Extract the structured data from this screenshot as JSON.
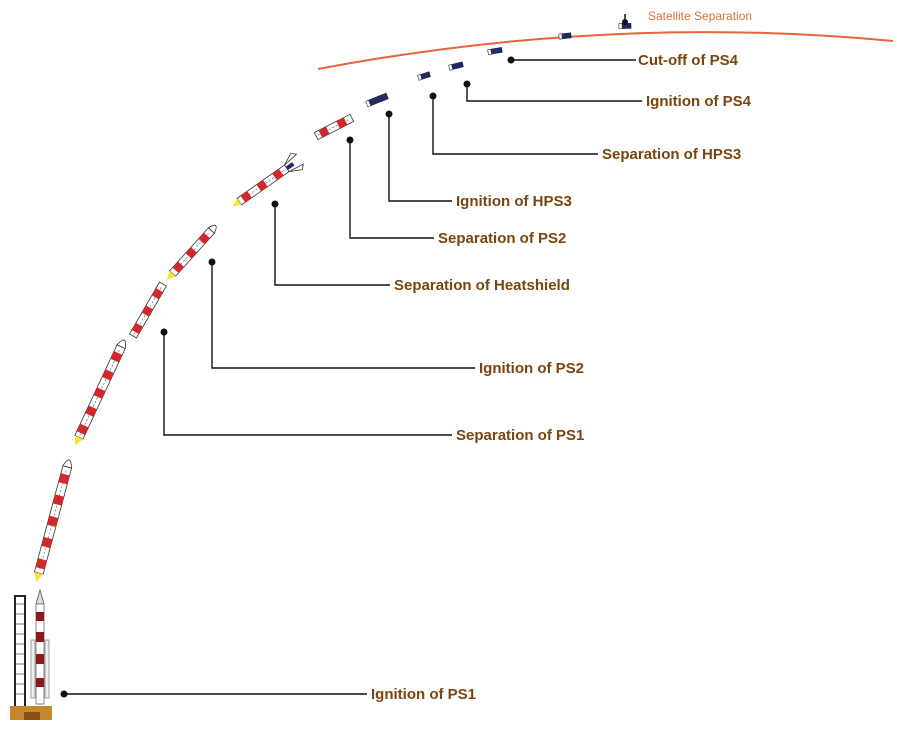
{
  "diagram": {
    "orbit_label": "Satellite Separation",
    "events": [
      {
        "id": "cutoff-ps4",
        "label": "Cut-off of PS4"
      },
      {
        "id": "ignition-ps4",
        "label": "Ignition of PS4"
      },
      {
        "id": "separation-hps3",
        "label": "Separation of HPS3"
      },
      {
        "id": "ignition-hps3",
        "label": "Ignition of HPS3"
      },
      {
        "id": "separation-ps2",
        "label": "Separation of PS2"
      },
      {
        "id": "separation-heatshield",
        "label": "Separation of Heatshield"
      },
      {
        "id": "ignition-ps2",
        "label": "Ignition of PS2"
      },
      {
        "id": "separation-ps1",
        "label": "Separation of PS1"
      },
      {
        "id": "ignition-ps1",
        "label": "Ignition of PS1"
      }
    ],
    "colors": {
      "label": "#7a4510",
      "orbit": "#e8643f",
      "rocket_red": "#d8262a",
      "rocket_white": "#ffffff",
      "flame": "#f5e43a",
      "upper_stage": "#1f2a6b"
    }
  }
}
